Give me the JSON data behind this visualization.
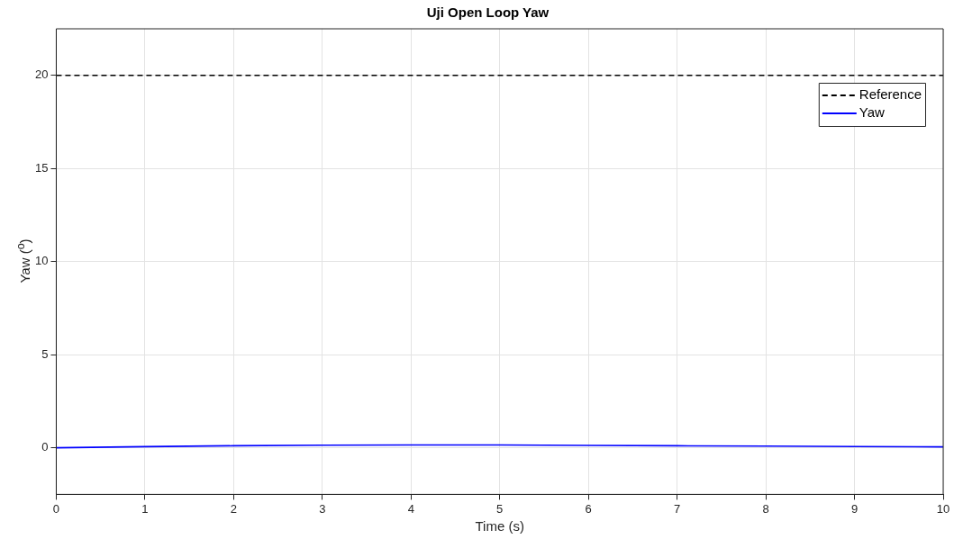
{
  "chart_data": {
    "type": "line",
    "title": "Uji Open Loop Yaw",
    "xlabel": "Time (s)",
    "ylabel": "Yaw ($^{o}$)",
    "xlim": [
      0,
      10
    ],
    "xticks": [
      0,
      1,
      2,
      3,
      4,
      5,
      6,
      7,
      8,
      9,
      10
    ],
    "ylim": [
      -2.5,
      22.5
    ],
    "yticks": [
      0,
      5,
      10,
      15,
      20
    ],
    "grid": true,
    "legend": "top right",
    "marker": "none",
    "series": [
      {
        "name": "Reference",
        "color": "#000000",
        "line_style": "dashed",
        "x": [
          0,
          10
        ],
        "values": [
          20,
          20
        ]
      },
      {
        "name": "Yaw",
        "color": "#0000ff",
        "line_style": "solid",
        "x": [
          0,
          1,
          2,
          3,
          4,
          5,
          6,
          7,
          8,
          9,
          10
        ],
        "values": [
          0,
          0.06,
          0.11,
          0.14,
          0.15,
          0.15,
          0.13,
          0.11,
          0.09,
          0.07,
          0.05
        ]
      }
    ]
  }
}
